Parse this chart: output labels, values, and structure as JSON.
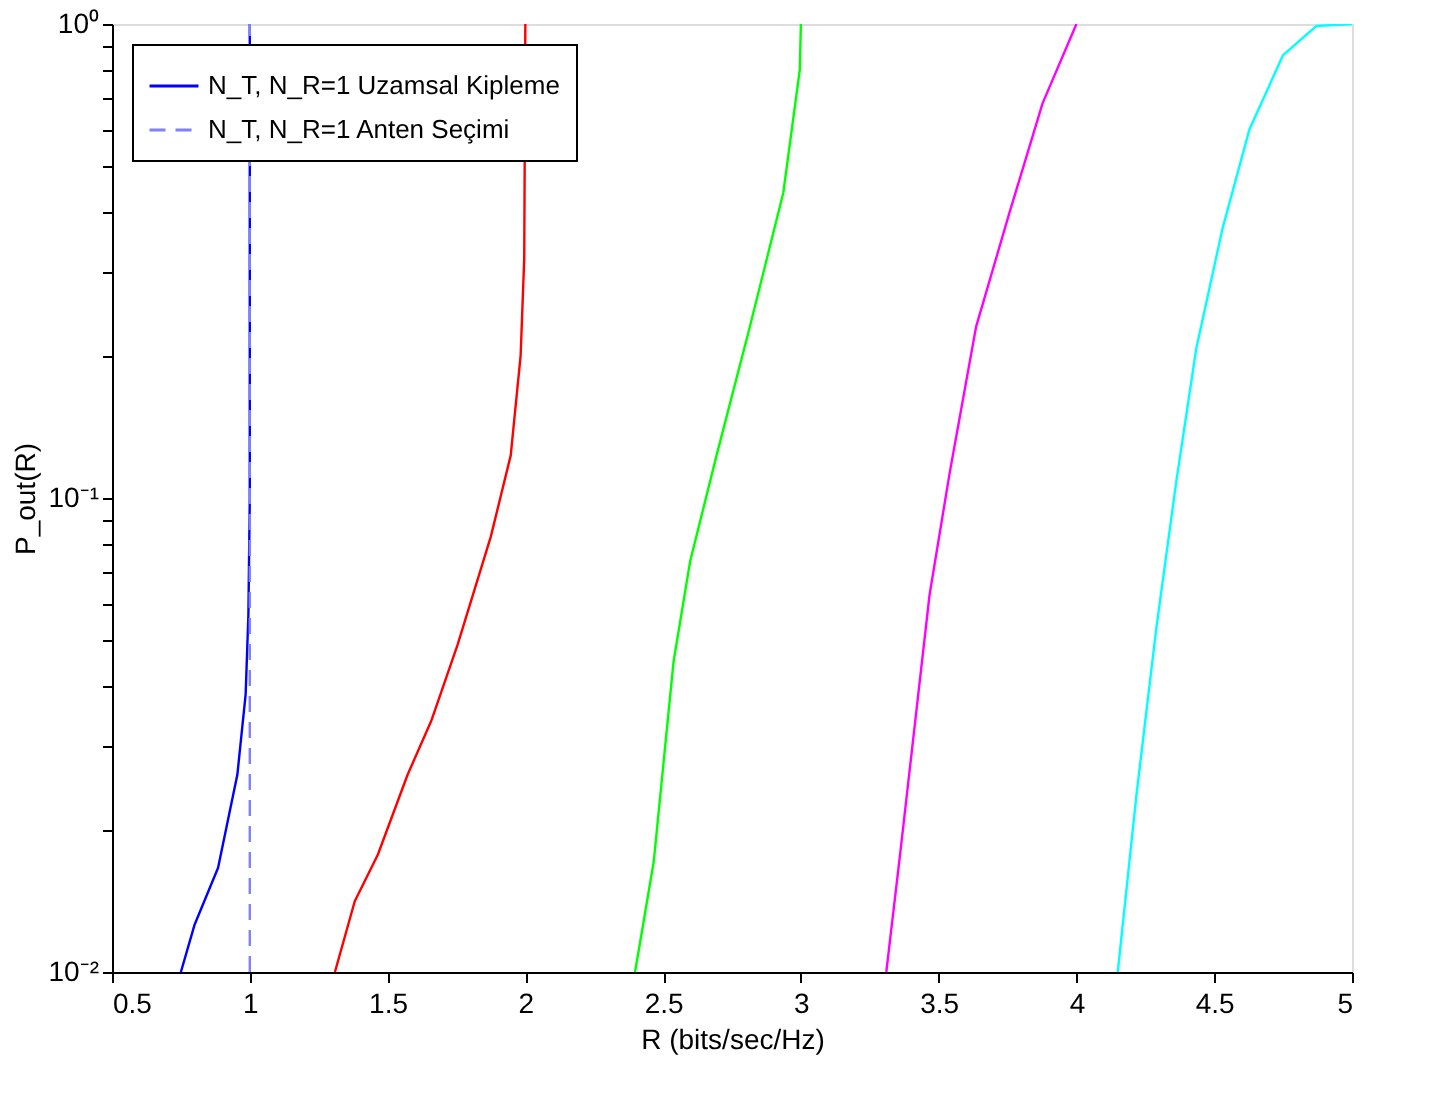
{
  "chart_data": {
    "type": "line",
    "xlabel": "R (bits/sec/Hz)",
    "ylabel": "P_out(R)",
    "log": "y",
    "xlim": [
      0.5,
      5
    ],
    "xticks": [
      0.5,
      1,
      1.5,
      2,
      2.5,
      3,
      3.5,
      4,
      4.5,
      5
    ],
    "ylim": [
      0.01,
      1
    ],
    "yticks": [
      {
        "value": 0.01,
        "label": "10⁻²"
      },
      {
        "value": 0.02,
        "label": null
      },
      {
        "value": 0.03,
        "label": null
      },
      {
        "value": 0.04,
        "label": null
      },
      {
        "value": 0.05,
        "label": null
      },
      {
        "value": 0.06,
        "label": null
      },
      {
        "value": 0.07,
        "label": null
      },
      {
        "value": 0.08,
        "label": null
      },
      {
        "value": 0.09,
        "label": null
      },
      {
        "value": 0.1,
        "label": "10⁻¹"
      },
      {
        "value": 0.2,
        "label": null
      },
      {
        "value": 0.3,
        "label": null
      },
      {
        "value": 0.4,
        "label": null
      },
      {
        "value": 0.5,
        "label": null
      },
      {
        "value": 0.6,
        "label": null
      },
      {
        "value": 0.7,
        "label": null
      },
      {
        "value": 0.8,
        "label": null
      },
      {
        "value": 0.9,
        "label": null
      },
      {
        "value": 1,
        "label": "10⁰"
      }
    ],
    "grid": false,
    "legend": "top left",
    "marker": "none",
    "series": [
      {
        "name": "N_T, N_R=1 Uzamsal Kipleme",
        "color": "#0000ff",
        "line_style": "solid",
        "x": [
          0.75,
          0.8,
          0.885,
          0.955,
          0.985,
          0.995,
          1,
          1
        ],
        "values": [
          0.01,
          0.0126,
          0.0166,
          0.0261,
          0.0385,
          0.0567,
          0.1,
          1
        ]
      },
      {
        "name": "N_T, N_R=1 Anten Seçimi",
        "color": "#8080ff",
        "line_style": "dashed",
        "x": [
          1,
          1
        ],
        "values": [
          0.01,
          1
        ]
      },
      {
        "color": "#ff0000",
        "line_style": "solid",
        "x": [
          1.309,
          1.381,
          1.465,
          1.573,
          1.658,
          1.754,
          1.875,
          1.947,
          1.983,
          1.996,
          2
        ],
        "values": [
          0.01,
          0.0141,
          0.0177,
          0.0261,
          0.0338,
          0.049,
          0.083,
          0.123,
          0.2,
          0.32,
          1
        ]
      },
      {
        "color": "#00ff00",
        "line_style": "solid",
        "x": [
          2.398,
          2.417,
          2.466,
          2.538,
          2.598,
          2.694,
          2.815,
          2.936,
          2.996,
          3
        ],
        "values": [
          0.01,
          0.0116,
          0.0171,
          0.0452,
          0.0735,
          0.123,
          0.23,
          0.44,
          0.8,
          1
        ]
      },
      {
        "color": "#ff00ff",
        "line_style": "solid",
        "x": [
          3.31,
          3.36,
          3.467,
          3.54,
          3.636,
          3.757,
          3.877,
          4
        ],
        "values": [
          0.01,
          0.0177,
          0.0625,
          0.113,
          0.23,
          0.4,
          0.68,
          1
        ]
      },
      {
        "color": "#00ffff",
        "line_style": "solid",
        "x": [
          4.15,
          4.218,
          4.29,
          4.362,
          4.435,
          4.53,
          4.628,
          4.75,
          4.87,
          5
        ],
        "values": [
          0.01,
          0.0237,
          0.0532,
          0.108,
          0.207,
          0.37,
          0.6,
          0.86,
          0.99,
          1
        ]
      }
    ]
  }
}
